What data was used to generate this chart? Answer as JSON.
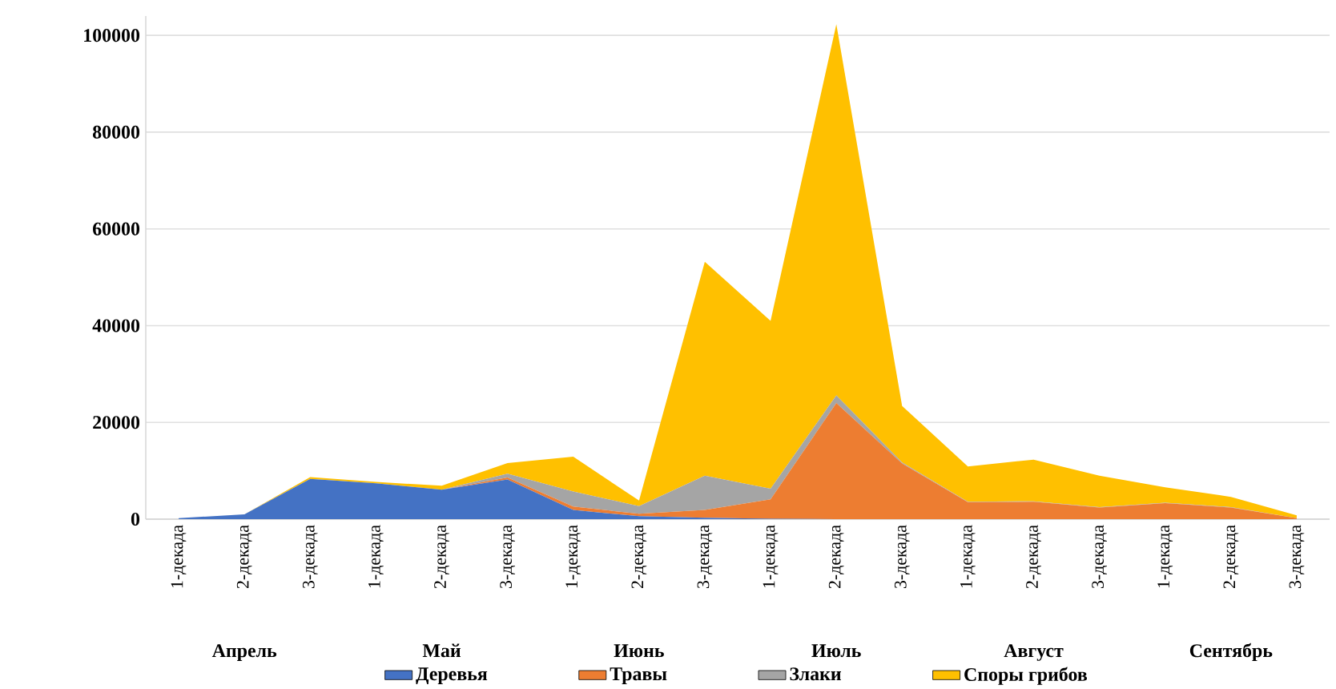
{
  "chart_data": {
    "type": "area",
    "stacked": true,
    "categories": [
      "1-декада",
      "2-декада",
      "3-декада",
      "1-декада",
      "2-декада",
      "3-декада",
      "1-декада",
      "2-декада",
      "3-декада",
      "1-декада",
      "2-декада",
      "3-декада",
      "1-декада",
      "2-декада",
      "3-декада",
      "1-декада",
      "2-декада",
      "3-декада"
    ],
    "annotations": [
      "Апрель",
      "Май",
      "Июнь",
      "Июль",
      "Август",
      "Сентябрь"
    ],
    "series": [
      {
        "name": "Деревья",
        "color": "#4472c4",
        "values": [
          200,
          1000,
          8300,
          7400,
          6100,
          8200,
          1900,
          600,
          300,
          100,
          0,
          0,
          0,
          0,
          0,
          0,
          0,
          0
        ]
      },
      {
        "name": "Травы",
        "color": "#ed7d31",
        "values": [
          0,
          0,
          0,
          0,
          0,
          400,
          700,
          500,
          1600,
          4000,
          24000,
          11500,
          3500,
          3600,
          2400,
          3300,
          2400,
          200
        ]
      },
      {
        "name": "Злаки",
        "color": "#a5a5a5",
        "values": [
          0,
          0,
          0,
          0,
          0,
          800,
          3100,
          1600,
          7100,
          2200,
          1600,
          200,
          100,
          100,
          100,
          100,
          100,
          0
        ]
      },
      {
        "name": "Споры грибов",
        "color": "#ffc000",
        "values": [
          0,
          0,
          400,
          300,
          800,
          2200,
          7200,
          1150,
          44200,
          34700,
          76700,
          11700,
          7300,
          8600,
          6500,
          3200,
          2100,
          600
        ]
      }
    ],
    "ylim": [
      0,
      104000
    ],
    "yticks": [
      0,
      20000,
      40000,
      60000,
      80000,
      100000
    ],
    "grid": "y",
    "legend": "bottom"
  }
}
